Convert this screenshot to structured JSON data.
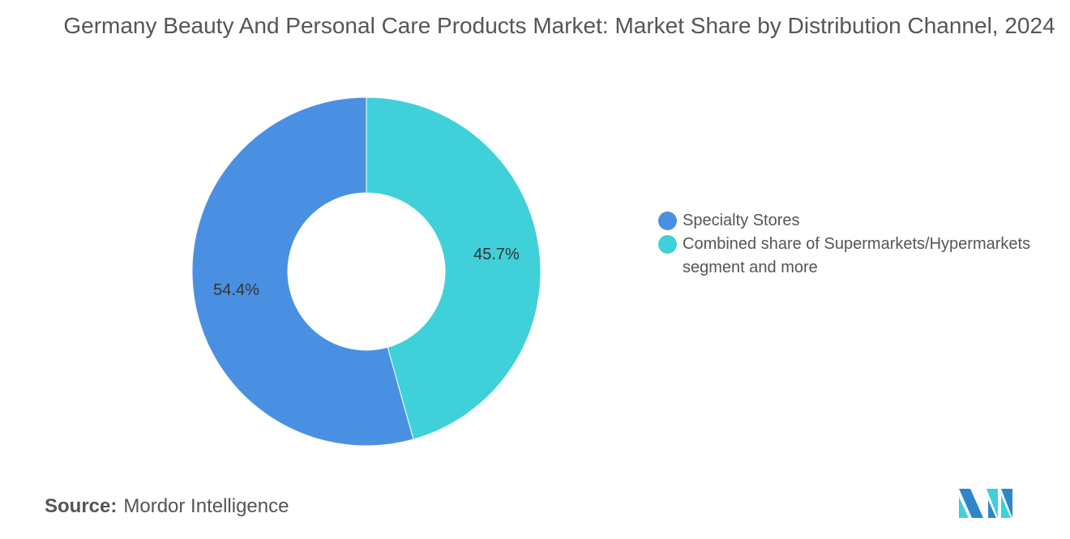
{
  "chart_data": {
    "type": "pie",
    "variant": "donut",
    "title": "Germany Beauty And Personal Care Products Market: Market Share by Distribution Channel, 2024",
    "slices": [
      {
        "name": "Combined share of Supermarkets/Hypermarkets segment and more",
        "value": 45.7,
        "label": "45.7%",
        "color": "#3fd0da"
      },
      {
        "name": "Specialty Stores",
        "value": 54.4,
        "label": "54.4%",
        "color": "#4a90e2"
      }
    ],
    "legend": {
      "placement": "right",
      "entries": [
        {
          "label": "Specialty Stores",
          "color": "#4a90e2"
        },
        {
          "label": "Combined share of Supermarkets/Hypermarkets segment and more",
          "color": "#3fd0da"
        }
      ]
    }
  },
  "source": {
    "label": "Source:",
    "value": "Mordor Intelligence"
  },
  "logo_text": "Mordor Intelligence"
}
